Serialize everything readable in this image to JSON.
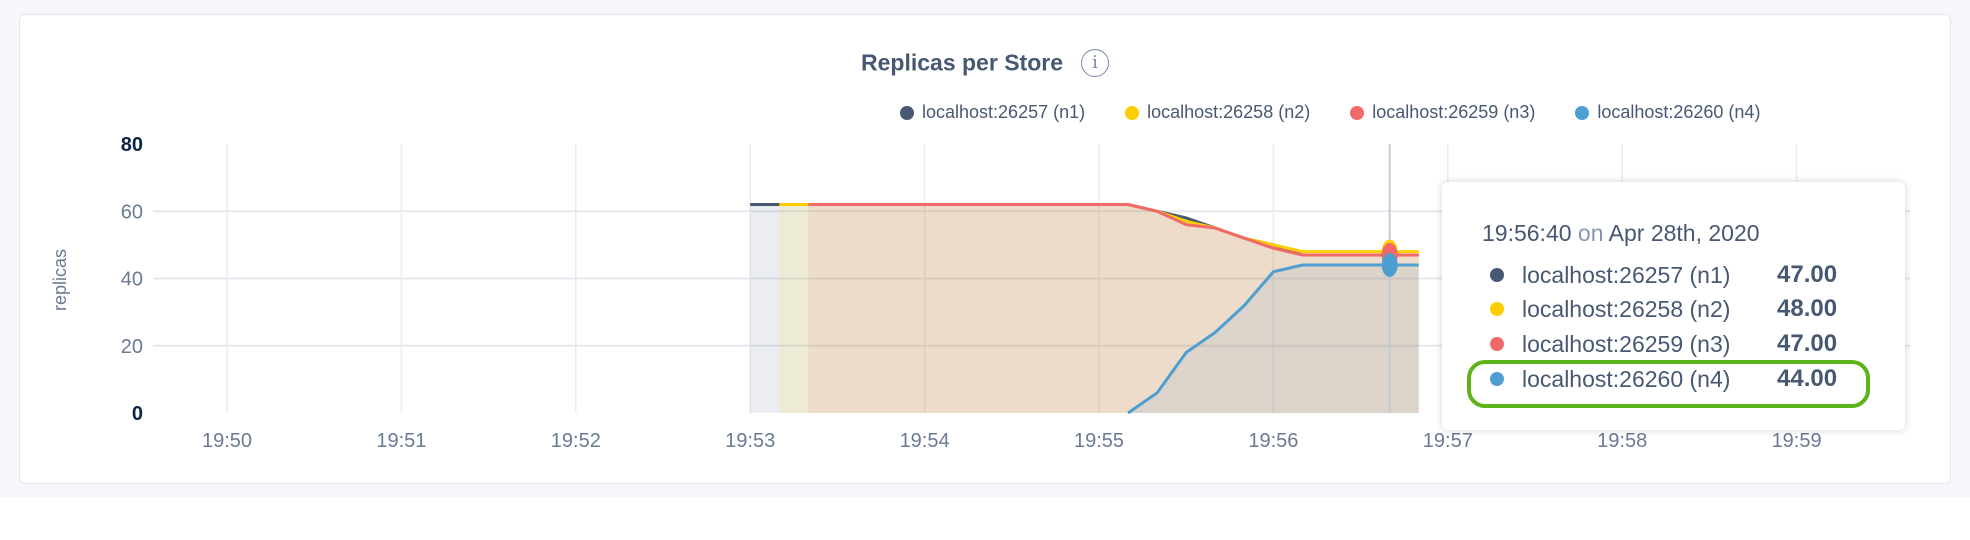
{
  "chart_data": {
    "type": "area",
    "title": "Replicas per Store",
    "ylabel": "replicas",
    "xlabel": "",
    "ylim": [
      0,
      80
    ],
    "yticks": [
      "0",
      "20",
      "40",
      "60",
      "80"
    ],
    "xticks": [
      "19:50",
      "19:51",
      "19:52",
      "19:53",
      "19:54",
      "19:55",
      "19:56",
      "19:57",
      "19:58",
      "19:59"
    ],
    "grid": true,
    "legend_position": "top-right",
    "series": [
      {
        "name": "localhost:26257 (n1)",
        "color": "#475872",
        "x": [
          "19:53:00",
          "19:53:10",
          "19:53:20",
          "19:54:00",
          "19:55:00",
          "19:55:10",
          "19:55:20",
          "19:55:30",
          "19:55:40",
          "19:55:50",
          "19:56:00",
          "19:56:10",
          "19:56:20",
          "19:56:30",
          "19:56:40",
          "19:56:50"
        ],
        "values": [
          62,
          62,
          62,
          62,
          62,
          62,
          60,
          58,
          55,
          52,
          50,
          47,
          47,
          47,
          47,
          47
        ]
      },
      {
        "name": "localhost:26258 (n2)",
        "color": "#ffcd02",
        "x": [
          "19:53:10",
          "19:53:20",
          "19:54:00",
          "19:55:00",
          "19:55:10",
          "19:55:20",
          "19:55:30",
          "19:55:40",
          "19:55:50",
          "19:56:00",
          "19:56:10",
          "19:56:20",
          "19:56:30",
          "19:56:40",
          "19:56:50"
        ],
        "values": [
          62,
          62,
          62,
          62,
          62,
          60,
          57,
          55,
          52,
          50,
          48,
          48,
          48,
          48,
          48
        ]
      },
      {
        "name": "localhost:26259 (n3)",
        "color": "#f16969",
        "x": [
          "19:53:20",
          "19:54:00",
          "19:55:00",
          "19:55:10",
          "19:55:20",
          "19:55:30",
          "19:55:40",
          "19:55:50",
          "19:56:00",
          "19:56:10",
          "19:56:20",
          "19:56:30",
          "19:56:40",
          "19:56:50"
        ],
        "values": [
          62,
          62,
          62,
          62,
          60,
          56,
          55,
          52,
          49,
          47,
          47,
          47,
          47,
          47
        ]
      },
      {
        "name": "localhost:26260 (n4)",
        "color": "#4e9fd1",
        "x": [
          "19:55:10",
          "19:55:20",
          "19:55:30",
          "19:55:40",
          "19:55:50",
          "19:56:00",
          "19:56:10",
          "19:56:20",
          "19:56:30",
          "19:56:40",
          "19:56:50"
        ],
        "values": [
          0,
          6,
          18,
          24,
          32,
          42,
          44,
          44,
          44,
          44,
          44
        ]
      }
    ],
    "hover_time": "19:56:40"
  },
  "tooltip": {
    "time": "19:56:40",
    "on": "on",
    "date": "Apr 28th, 2020",
    "rows": [
      {
        "label": "localhost:26257 (n1)",
        "value": "47.00",
        "color": "#475872"
      },
      {
        "label": "localhost:26258 (n2)",
        "value": "48.00",
        "color": "#ffcd02"
      },
      {
        "label": "localhost:26259 (n3)",
        "value": "47.00",
        "color": "#f16969"
      },
      {
        "label": "localhost:26260 (n4)",
        "value": "44.00",
        "color": "#4e9fd1"
      }
    ],
    "highlighted_row": 3,
    "highlight_color": "#5cb31a"
  },
  "info_icon": "info-icon"
}
